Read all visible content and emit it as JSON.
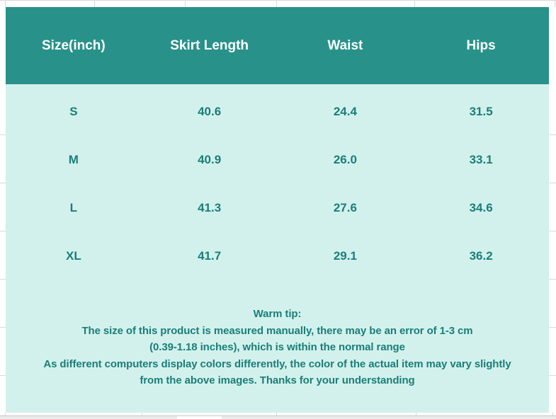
{
  "table": {
    "columns": [
      "Size(inch)",
      "Skirt Length",
      "Waist",
      "Hips"
    ],
    "rows": [
      [
        "S",
        "40.6",
        "24.4",
        "31.5"
      ],
      [
        "M",
        "40.9",
        "26.0",
        "33.1"
      ],
      [
        "L",
        "41.3",
        "27.6",
        "34.6"
      ],
      [
        "XL",
        "41.7",
        "29.1",
        "36.2"
      ]
    ]
  },
  "warm_tip": {
    "lines": [
      "Warm tip:",
      "The size of this product is measured manually, there may be an error of 1-3 cm",
      "(0.39-1.18 inches), which is within the normal range",
      "As different computers display colors differently, the color of the actual item may vary slightly",
      "from the above images. Thanks for your understanding"
    ]
  },
  "colors": {
    "header_bg": "#28918a",
    "body_bg": "#d2f1ed",
    "text_teal": "#1b7e78",
    "header_text": "#ffffff",
    "gridline": "#d9d9d9"
  }
}
